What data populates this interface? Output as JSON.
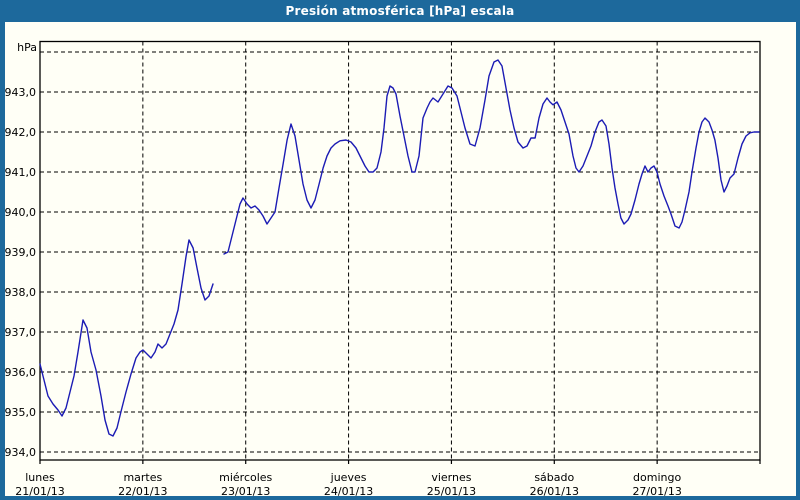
{
  "window": {
    "title": "Presión atmosférica [hPa] escala"
  },
  "colors": {
    "titlebar": "#1d699c",
    "frame": "#1d699c",
    "background": "#fffff6",
    "line": "#1c1cb4",
    "grid": "#000000",
    "text": "#000000",
    "title_text": "#ffffff"
  },
  "chart_data": {
    "type": "line",
    "title": "Presión atmosférica [hPa] escala",
    "unit_label": "hPa",
    "grid": "dashed",
    "legend": "none",
    "x_axis": {
      "span_days": 7,
      "days": [
        {
          "weekday": "lunes",
          "date": "21/01/13"
        },
        {
          "weekday": "martes",
          "date": "22/01/13"
        },
        {
          "weekday": "miércoles",
          "date": "23/01/13"
        },
        {
          "weekday": "jueves",
          "date": "24/01/13"
        },
        {
          "weekday": "viernes",
          "date": "25/01/13"
        },
        {
          "weekday": "sábado",
          "date": "26/01/13"
        },
        {
          "weekday": "domingo",
          "date": "27/01/13"
        }
      ]
    },
    "y_axis": {
      "tick_values": [
        934,
        935,
        936,
        937,
        938,
        939,
        940,
        941,
        942,
        943
      ],
      "tick_labels": [
        "934,0",
        "935,0",
        "936,0",
        "937,0",
        "938,0",
        "939,0",
        "940,0",
        "941,0",
        "942,0",
        "943,0"
      ],
      "extra_gridlines": [
        944
      ],
      "min": 933.8,
      "max": 944.3
    },
    "series": [
      {
        "name": "presión atmosférica",
        "color": "#1c1cb4",
        "points": [
          [
            0.0,
            936.2
          ],
          [
            0.039,
            935.8
          ],
          [
            0.078,
            935.4
          ],
          [
            0.126,
            935.2
          ],
          [
            0.175,
            935.05
          ],
          [
            0.214,
            934.9
          ],
          [
            0.253,
            935.1
          ],
          [
            0.292,
            935.5
          ],
          [
            0.331,
            935.9
          ],
          [
            0.369,
            936.5
          ],
          [
            0.418,
            937.3
          ],
          [
            0.457,
            937.1
          ],
          [
            0.496,
            936.5
          ],
          [
            0.544,
            936.05
          ],
          [
            0.593,
            935.4
          ],
          [
            0.632,
            934.8
          ],
          [
            0.671,
            934.45
          ],
          [
            0.71,
            934.4
          ],
          [
            0.749,
            934.6
          ],
          [
            0.787,
            935.0
          ],
          [
            0.836,
            935.5
          ],
          [
            0.885,
            935.95
          ],
          [
            0.933,
            936.35
          ],
          [
            0.972,
            936.5
          ],
          [
            1.001,
            936.55
          ],
          [
            1.04,
            936.45
          ],
          [
            1.079,
            936.35
          ],
          [
            1.118,
            936.5
          ],
          [
            1.147,
            936.7
          ],
          [
            1.186,
            936.6
          ],
          [
            1.225,
            936.7
          ],
          [
            1.264,
            936.95
          ],
          [
            1.303,
            937.2
          ],
          [
            1.342,
            937.55
          ],
          [
            1.381,
            938.2
          ],
          [
            1.42,
            938.9
          ],
          [
            1.449,
            939.3
          ],
          [
            1.488,
            939.1
          ],
          [
            1.526,
            938.6
          ],
          [
            1.565,
            938.1
          ],
          [
            1.604,
            937.8
          ],
          [
            1.643,
            937.9
          ],
          [
            1.682,
            938.2
          ],
          null,
          [
            1.789,
            938.95
          ],
          [
            1.828,
            939.0
          ],
          [
            1.867,
            939.4
          ],
          [
            1.906,
            939.8
          ],
          [
            1.944,
            940.2
          ],
          [
            1.974,
            940.35
          ],
          [
            2.013,
            940.2
          ],
          [
            2.051,
            940.1
          ],
          [
            2.09,
            940.15
          ],
          [
            2.129,
            940.05
          ],
          [
            2.168,
            939.9
          ],
          [
            2.207,
            939.7
          ],
          [
            2.246,
            939.85
          ],
          [
            2.285,
            940.0
          ],
          [
            2.324,
            940.6
          ],
          [
            2.363,
            941.2
          ],
          [
            2.402,
            941.8
          ],
          [
            2.44,
            942.2
          ],
          [
            2.479,
            941.9
          ],
          [
            2.518,
            941.3
          ],
          [
            2.557,
            940.7
          ],
          [
            2.596,
            940.3
          ],
          [
            2.635,
            940.1
          ],
          [
            2.674,
            940.3
          ],
          [
            2.713,
            940.7
          ],
          [
            2.752,
            941.1
          ],
          [
            2.79,
            941.4
          ],
          [
            2.829,
            941.6
          ],
          [
            2.868,
            941.7
          ],
          [
            2.917,
            941.78
          ],
          [
            2.975,
            941.8
          ],
          [
            3.024,
            941.75
          ],
          [
            3.072,
            941.6
          ],
          [
            3.121,
            941.35
          ],
          [
            3.16,
            941.15
          ],
          [
            3.199,
            941.0
          ],
          [
            3.238,
            941.0
          ],
          [
            3.276,
            941.1
          ],
          [
            3.315,
            941.5
          ],
          [
            3.344,
            942.1
          ],
          [
            3.374,
            942.9
          ],
          [
            3.403,
            943.15
          ],
          [
            3.432,
            943.1
          ],
          [
            3.461,
            942.95
          ],
          [
            3.5,
            942.4
          ],
          [
            3.539,
            941.9
          ],
          [
            3.578,
            941.4
          ],
          [
            3.617,
            941.0
          ],
          [
            3.646,
            941.0
          ],
          [
            3.685,
            941.4
          ],
          [
            3.724,
            942.35
          ],
          [
            3.763,
            942.6
          ],
          [
            3.792,
            942.75
          ],
          [
            3.821,
            942.85
          ],
          [
            3.869,
            942.75
          ],
          [
            3.918,
            942.95
          ],
          [
            3.967,
            943.15
          ],
          [
            4.006,
            943.1
          ],
          [
            4.054,
            942.9
          ],
          [
            4.093,
            942.5
          ],
          [
            4.132,
            942.1
          ],
          [
            4.181,
            941.7
          ],
          [
            4.229,
            941.65
          ],
          [
            4.278,
            942.1
          ],
          [
            4.326,
            942.8
          ],
          [
            4.365,
            943.4
          ],
          [
            4.414,
            943.75
          ],
          [
            4.453,
            943.8
          ],
          [
            4.492,
            943.65
          ],
          [
            4.531,
            943.1
          ],
          [
            4.569,
            942.55
          ],
          [
            4.608,
            942.1
          ],
          [
            4.647,
            941.75
          ],
          [
            4.696,
            941.6
          ],
          [
            4.735,
            941.65
          ],
          [
            4.774,
            941.85
          ],
          [
            4.813,
            941.85
          ],
          [
            4.851,
            942.35
          ],
          [
            4.89,
            942.7
          ],
          [
            4.929,
            942.85
          ],
          [
            4.958,
            942.75
          ],
          [
            4.987,
            942.68
          ],
          [
            5.026,
            942.75
          ],
          [
            5.065,
            942.55
          ],
          [
            5.104,
            942.25
          ],
          [
            5.143,
            941.95
          ],
          [
            5.182,
            941.4
          ],
          [
            5.211,
            941.1
          ],
          [
            5.24,
            941.0
          ],
          [
            5.279,
            941.15
          ],
          [
            5.318,
            941.4
          ],
          [
            5.357,
            941.65
          ],
          [
            5.396,
            942.0
          ],
          [
            5.435,
            942.25
          ],
          [
            5.464,
            942.3
          ],
          [
            5.503,
            942.15
          ],
          [
            5.532,
            941.7
          ],
          [
            5.561,
            941.1
          ],
          [
            5.59,
            940.6
          ],
          [
            5.619,
            940.2
          ],
          [
            5.648,
            939.85
          ],
          [
            5.678,
            939.7
          ],
          [
            5.717,
            939.8
          ],
          [
            5.746,
            939.95
          ],
          [
            5.785,
            940.3
          ],
          [
            5.824,
            940.7
          ],
          [
            5.853,
            940.95
          ],
          [
            5.882,
            941.15
          ],
          [
            5.911,
            941.0
          ],
          [
            5.94,
            941.1
          ],
          [
            5.969,
            941.15
          ],
          [
            5.999,
            941.0
          ],
          [
            6.028,
            940.7
          ],
          [
            6.067,
            940.4
          ],
          [
            6.106,
            940.15
          ],
          [
            6.135,
            939.95
          ],
          [
            6.174,
            939.65
          ],
          [
            6.213,
            939.6
          ],
          [
            6.242,
            939.75
          ],
          [
            6.271,
            940.05
          ],
          [
            6.31,
            940.5
          ],
          [
            6.339,
            941.0
          ],
          [
            6.378,
            941.6
          ],
          [
            6.407,
            942.0
          ],
          [
            6.436,
            942.25
          ],
          [
            6.465,
            942.35
          ],
          [
            6.504,
            942.25
          ],
          [
            6.533,
            942.05
          ],
          [
            6.562,
            941.8
          ],
          [
            6.592,
            941.35
          ],
          [
            6.621,
            940.8
          ],
          [
            6.65,
            940.5
          ],
          [
            6.679,
            940.65
          ],
          [
            6.708,
            940.85
          ],
          [
            6.747,
            940.95
          ],
          [
            6.786,
            941.35
          ],
          [
            6.825,
            941.7
          ],
          [
            6.864,
            941.9
          ],
          [
            6.903,
            941.98
          ],
          [
            6.942,
            942.0
          ],
          [
            6.99,
            942.0
          ]
        ]
      }
    ]
  }
}
